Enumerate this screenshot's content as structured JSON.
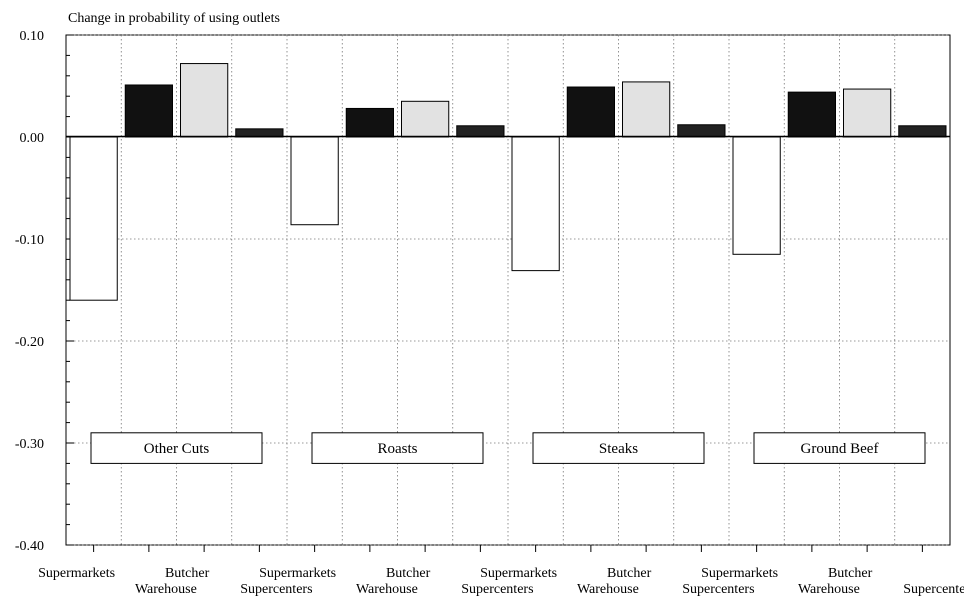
{
  "chart_data": {
    "type": "bar",
    "title": "Change in probability of using outlets",
    "ylim": [
      -0.4,
      0.1
    ],
    "y_ticks": [
      "0.10",
      "0.00",
      "-0.10",
      "-0.20",
      "-0.30",
      "-0.40"
    ],
    "y_tick_values": [
      0.1,
      0.0,
      -0.1,
      -0.2,
      -0.3,
      -0.4
    ],
    "grid": true,
    "groups": [
      {
        "label": "Other Cuts",
        "categories": [
          "Supermarkets",
          "Warehouse",
          "Butcher",
          "Supercenters"
        ],
        "values": [
          -0.16,
          0.051,
          0.072,
          0.008
        ]
      },
      {
        "label": "Roasts",
        "categories": [
          "Supermarkets",
          "Warehouse",
          "Butcher",
          "Supercenters"
        ],
        "values": [
          -0.086,
          0.028,
          0.035,
          0.011
        ]
      },
      {
        "label": "Steaks",
        "categories": [
          "Supermarkets",
          "Warehouse",
          "Butcher",
          "Supercenters"
        ],
        "values": [
          -0.131,
          0.049,
          0.054,
          0.012
        ]
      },
      {
        "label": "Ground Beef",
        "categories": [
          "Supermarkets",
          "Warehouse",
          "Butcher",
          "Supercenters"
        ],
        "values": [
          -0.115,
          0.044,
          0.047,
          0.011
        ]
      }
    ],
    "colors": {
      "Supermarkets": "#ffffff",
      "Warehouse": "#111111",
      "Butcher": "#e2e2e2",
      "Supercenters": "#222222"
    }
  }
}
